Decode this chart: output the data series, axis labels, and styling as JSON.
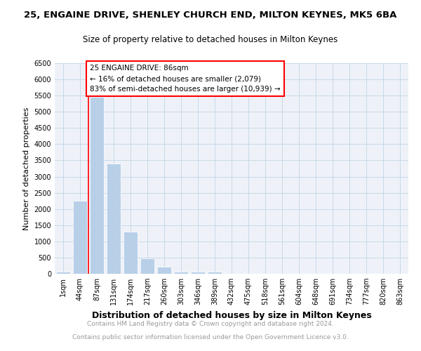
{
  "title1": "25, ENGAINE DRIVE, SHENLEY CHURCH END, MILTON KEYNES, MK5 6BA",
  "title2": "Size of property relative to detached houses in Milton Keynes",
  "xlabel": "Distribution of detached houses by size in Milton Keynes",
  "ylabel": "Number of detached properties",
  "bar_labels": [
    "1sqm",
    "44sqm",
    "87sqm",
    "131sqm",
    "174sqm",
    "217sqm",
    "260sqm",
    "303sqm",
    "346sqm",
    "389sqm",
    "432sqm",
    "475sqm",
    "518sqm",
    "561sqm",
    "604sqm",
    "648sqm",
    "691sqm",
    "734sqm",
    "777sqm",
    "820sqm",
    "863sqm"
  ],
  "bar_values": [
    75,
    2250,
    5450,
    3400,
    1300,
    480,
    210,
    75,
    75,
    60,
    0,
    0,
    0,
    0,
    0,
    0,
    0,
    0,
    0,
    0,
    0
  ],
  "bar_color": "#b8cfe8",
  "annotation_text_line1": "25 ENGAINE DRIVE: 86sqm",
  "annotation_text_line2": "← 16% of detached houses are smaller (2,079)",
  "annotation_text_line3": "83% of semi-detached houses are larger (10,939) →",
  "red_line_x": 1.5,
  "ylim": [
    0,
    6500
  ],
  "yticks": [
    0,
    500,
    1000,
    1500,
    2000,
    2500,
    3000,
    3500,
    4000,
    4500,
    5000,
    5500,
    6000,
    6500
  ],
  "grid_color": "#c8d8e8",
  "background_color": "#eef2f8",
  "footer_line1": "Contains HM Land Registry data © Crown copyright and database right 2024.",
  "footer_line2": "Contains public sector information licensed under the Open Government Licence v3.0.",
  "title1_fontsize": 9.5,
  "title2_fontsize": 8.5,
  "xlabel_fontsize": 9,
  "ylabel_fontsize": 8,
  "tick_fontsize": 7,
  "footer_fontsize": 6.5,
  "ann_fontsize": 7.5
}
